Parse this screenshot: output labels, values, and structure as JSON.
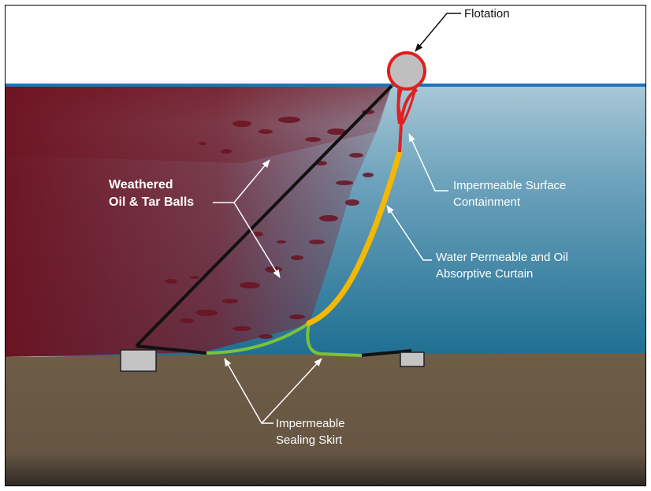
{
  "labels": {
    "flotation": "Flotation",
    "weathered_line1": "Weathered",
    "weathered_line2": "Oil  & Tar Balls",
    "surface_line1": "Impermeable Surface",
    "surface_line2": "Containment",
    "curtain_line1": "Water Permeable and Oil",
    "curtain_line2": "Absorptive Curtain",
    "skirt_line1": "Impermeable",
    "skirt_line2": "Sealing Skirt"
  },
  "colors": {
    "water_surface": "#1b75b8",
    "water_top": "#a9c8d6",
    "water_bottom": "#1e6f92",
    "oil_plume": "#6d0f1d",
    "seabed": "#6e5d47",
    "flotation_ring": "#e02020",
    "flotation_fill": "#bfbfbf",
    "surface_containment": "#e02020",
    "absorptive_curtain": "#f5b800",
    "sealing_skirt": "#7cc23a",
    "mooring_line": "#111111",
    "anchor": "#c4c4c4"
  }
}
